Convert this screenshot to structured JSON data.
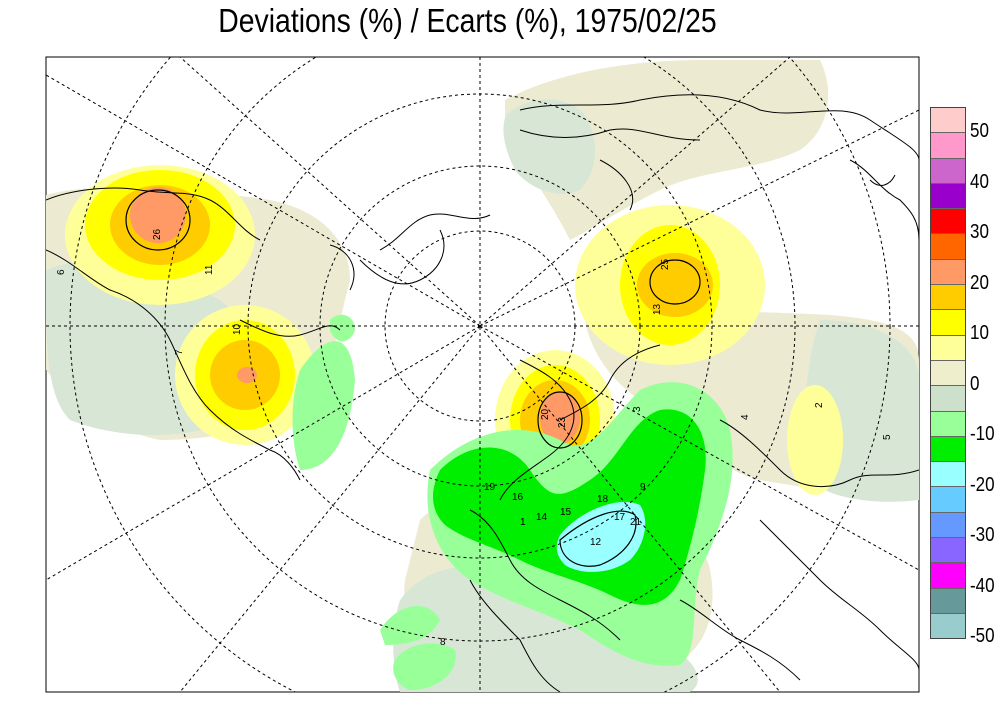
{
  "title": "Deviations (%) / Ecarts (%), 1975/02/25",
  "legend": {
    "colors": [
      "#ffcccc",
      "#ff99cc",
      "#cc66cc",
      "#9900cc",
      "#ff0000",
      "#ff6600",
      "#ff9966",
      "#ffcc00",
      "#ffff00",
      "#ffff99",
      "#eeeecc",
      "#cce0cc",
      "#99ff99",
      "#00ee00",
      "#99ffff",
      "#66ccff",
      "#6699ff",
      "#8866ff",
      "#ff00ff",
      "#669999",
      "#99cccc"
    ],
    "labels": [
      "50",
      "40",
      "30",
      "20",
      "10",
      "0",
      "-10",
      "-20",
      "-30",
      "-40",
      "-50"
    ]
  },
  "contour_labels": [
    "26",
    "11",
    "6",
    "7",
    "10",
    "13",
    "25",
    "20",
    "23",
    "21",
    "19",
    "14",
    "15",
    "18",
    "17",
    "12",
    "16",
    "9",
    "8",
    "5",
    "4",
    "3",
    "1",
    "2"
  ]
}
